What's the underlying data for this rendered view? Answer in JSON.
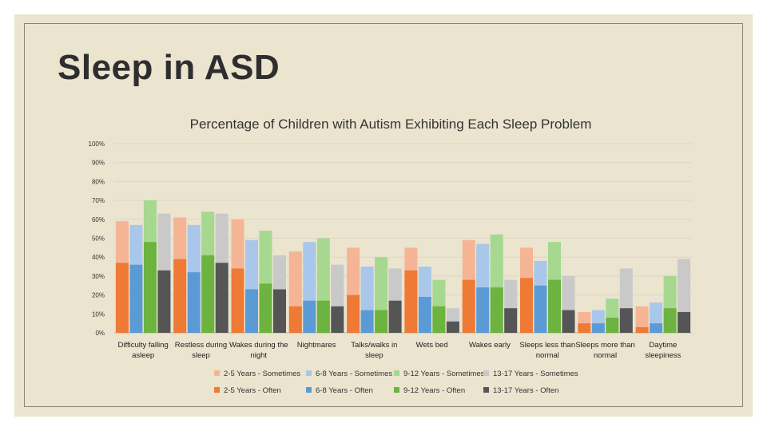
{
  "slide": {
    "title": "Sleep in ASD",
    "background": "#ebe4cf"
  },
  "chart_data": {
    "type": "bar",
    "title": "Percentage of Children with Autism Exhibiting Each Sleep Problem",
    "xlabel": "",
    "ylabel": "",
    "ylim": [
      0,
      100
    ],
    "yticks": [
      "0%",
      "10%",
      "20%",
      "30%",
      "40%",
      "50%",
      "60%",
      "70%",
      "80%",
      "90%",
      "100%"
    ],
    "grid": true,
    "stacked": "overlay",
    "categories": [
      [
        "Difficulty falling",
        "asleep"
      ],
      [
        "Restless during",
        "sleep"
      ],
      [
        "Wakes during the",
        "night"
      ],
      [
        "Nightmares"
      ],
      [
        "Talks/walks in",
        "sleep"
      ],
      [
        "Wets bed"
      ],
      [
        "Wakes early"
      ],
      [
        "Sleeps less than",
        "normal"
      ],
      [
        "Sleeps more than",
        "normal"
      ],
      [
        "Daytime",
        "sleepiness"
      ]
    ],
    "series": [
      {
        "name": "2-5 Years - Sometimes",
        "group": "2-5 Years",
        "kind": "Sometimes",
        "color": "#f5b595",
        "values": [
          59,
          61,
          60,
          43,
          45,
          45,
          49,
          45,
          11,
          14
        ]
      },
      {
        "name": "6-8 Years - Sometimes",
        "group": "6-8 Years",
        "kind": "Sometimes",
        "color": "#a9c7ea",
        "values": [
          57,
          57,
          49,
          48,
          35,
          35,
          47,
          38,
          12,
          16
        ]
      },
      {
        "name": "9-12 Years - Sometimes",
        "group": "9-12 Years",
        "kind": "Sometimes",
        "color": "#a6d890",
        "values": [
          70,
          64,
          54,
          50,
          40,
          28,
          52,
          48,
          18,
          30
        ]
      },
      {
        "name": "13-17 Years - Sometimes",
        "group": "13-17 Years",
        "kind": "Sometimes",
        "color": "#c9c9c9",
        "values": [
          63,
          63,
          41,
          36,
          34,
          13,
          28,
          30,
          34,
          39
        ]
      },
      {
        "name": "2-5 Years - Often",
        "group": "2-5 Years",
        "kind": "Often",
        "color": "#ee7a35",
        "values": [
          37,
          39,
          34,
          14,
          20,
          33,
          28,
          29,
          5,
          3
        ]
      },
      {
        "name": "6-8 Years - Often",
        "group": "6-8 Years",
        "kind": "Often",
        "color": "#5b9bd5",
        "values": [
          36,
          32,
          23,
          17,
          12,
          19,
          24,
          25,
          5,
          5
        ]
      },
      {
        "name": "9-12 Years - Often",
        "group": "9-12 Years",
        "kind": "Often",
        "color": "#6cb33f",
        "values": [
          48,
          41,
          26,
          17,
          12,
          14,
          24,
          28,
          8,
          13
        ]
      },
      {
        "name": "13-17 Years - Often",
        "group": "13-17 Years",
        "kind": "Often",
        "color": "#555555",
        "values": [
          33,
          37,
          23,
          14,
          17,
          6,
          13,
          12,
          13,
          11
        ]
      }
    ],
    "legend_placement": "bottom"
  }
}
